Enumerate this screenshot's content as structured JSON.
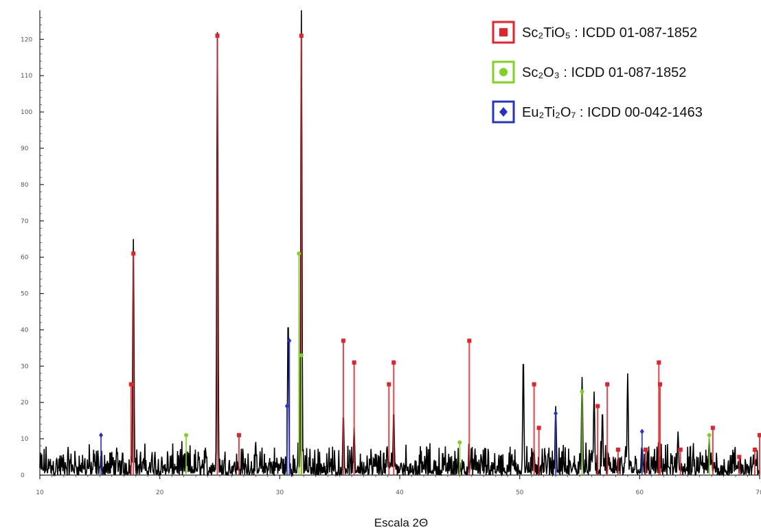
{
  "chart_data": {
    "type": "line",
    "title": "",
    "xlabel": "Escala 2Θ",
    "ylabel": "",
    "xlim": [
      10,
      70
    ],
    "ylim": [
      0,
      128
    ],
    "x_ticks": [
      {
        "value": 10,
        "label": "10"
      },
      {
        "value": 20,
        "label": "20"
      },
      {
        "value": 30,
        "label": "30"
      },
      {
        "value": 40,
        "label": "40"
      },
      {
        "value": 50,
        "label": "50"
      },
      {
        "value": 60,
        "label": "60"
      },
      {
        "value": 70,
        "label": "70"
      }
    ],
    "y_ticks": [
      {
        "value": 0,
        "label": "0"
      },
      {
        "value": 10,
        "label": "10"
      },
      {
        "value": 20,
        "label": "20"
      },
      {
        "value": 30,
        "label": "30"
      },
      {
        "value": 40,
        "label": "40"
      },
      {
        "value": 50,
        "label": "50"
      },
      {
        "value": 60,
        "label": "60"
      },
      {
        "value": 70,
        "label": "70"
      },
      {
        "value": 80,
        "label": "80"
      },
      {
        "value": 90,
        "label": "90"
      },
      {
        "value": 100,
        "label": "100"
      },
      {
        "value": 110,
        "label": "110"
      },
      {
        "value": 120,
        "label": "120"
      }
    ],
    "legend_position": "top-right",
    "pattern": {
      "color": "#000000",
      "noise_level": [
        0,
        7
      ],
      "peaks": [
        {
          "x": 17.8,
          "y": 65
        },
        {
          "x": 24.8,
          "y": 122
        },
        {
          "x": 30.7,
          "y": 44
        },
        {
          "x": 31.8,
          "y": 128
        },
        {
          "x": 35.3,
          "y": 17
        },
        {
          "x": 36.2,
          "y": 13
        },
        {
          "x": 39.5,
          "y": 18
        },
        {
          "x": 50.3,
          "y": 33
        },
        {
          "x": 51.2,
          "y": 7
        },
        {
          "x": 53.0,
          "y": 19
        },
        {
          "x": 55.2,
          "y": 27
        },
        {
          "x": 56.2,
          "y": 23
        },
        {
          "x": 56.9,
          "y": 18
        },
        {
          "x": 59.0,
          "y": 28
        },
        {
          "x": 63.2,
          "y": 12
        },
        {
          "x": 65.8,
          "y": 10
        }
      ]
    },
    "phases": [
      {
        "name": "Sc₂TiO₅ : ICDD 01-087-1852",
        "color": "#e8202a",
        "marker": "square",
        "reflections": [
          {
            "x": 17.6,
            "y": 25
          },
          {
            "x": 17.8,
            "y": 61
          },
          {
            "x": 24.8,
            "y": 121
          },
          {
            "x": 26.6,
            "y": 11
          },
          {
            "x": 31.8,
            "y": 121
          },
          {
            "x": 35.3,
            "y": 37
          },
          {
            "x": 36.2,
            "y": 31
          },
          {
            "x": 39.1,
            "y": 25
          },
          {
            "x": 39.5,
            "y": 31
          },
          {
            "x": 45.8,
            "y": 37
          },
          {
            "x": 51.2,
            "y": 25
          },
          {
            "x": 51.6,
            "y": 13
          },
          {
            "x": 56.5,
            "y": 19
          },
          {
            "x": 57.3,
            "y": 25
          },
          {
            "x": 58.2,
            "y": 7
          },
          {
            "x": 60.5,
            "y": 7
          },
          {
            "x": 61.6,
            "y": 31
          },
          {
            "x": 61.7,
            "y": 25
          },
          {
            "x": 63.4,
            "y": 7
          },
          {
            "x": 66.1,
            "y": 13
          },
          {
            "x": 68.3,
            "y": 5
          },
          {
            "x": 69.6,
            "y": 7
          },
          {
            "x": 70.0,
            "y": 11
          }
        ]
      },
      {
        "name": "Sc₂O₃ : ICDD 01-087-1852",
        "color": "#7ed321",
        "marker": "circle",
        "reflections": [
          {
            "x": 22.2,
            "y": 11
          },
          {
            "x": 31.6,
            "y": 61
          },
          {
            "x": 31.8,
            "y": 33
          },
          {
            "x": 45.0,
            "y": 9
          },
          {
            "x": 55.2,
            "y": 23
          },
          {
            "x": 65.8,
            "y": 11
          }
        ]
      },
      {
        "name": "Eu₂Ti₂O₇ : ICDD 00-042-1463",
        "color": "#2732c8",
        "marker": "diamond",
        "reflections": [
          {
            "x": 15.1,
            "y": 11
          },
          {
            "x": 30.6,
            "y": 19
          },
          {
            "x": 30.8,
            "y": 37
          },
          {
            "x": 53.0,
            "y": 17
          },
          {
            "x": 60.2,
            "y": 12
          }
        ]
      }
    ]
  }
}
